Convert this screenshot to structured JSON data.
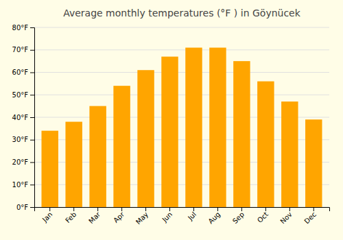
{
  "chart_data": {
    "type": "bar",
    "title": "Average monthly temperatures (°F ) in Göynücek",
    "categories": [
      "Jan",
      "Feb",
      "Mar",
      "Apr",
      "May",
      "Jun",
      "Jul",
      "Aug",
      "Sep",
      "Oct",
      "Nov",
      "Dec"
    ],
    "values": [
      34,
      38,
      45,
      54,
      61,
      67,
      71,
      71,
      65,
      56,
      47,
      39
    ],
    "color": "#FFA500",
    "ylim": [
      0,
      80
    ],
    "yticks": [
      {
        "value": 0,
        "label": "0°F"
      },
      {
        "value": 10,
        "label": "10°F"
      },
      {
        "value": 20,
        "label": "20°F"
      },
      {
        "value": 30,
        "label": "30°F"
      },
      {
        "value": 40,
        "label": "40°F"
      },
      {
        "value": 50,
        "label": "50°F"
      },
      {
        "value": 60,
        "label": "60°F"
      },
      {
        "value": 70,
        "label": "70°F"
      },
      {
        "value": 80,
        "label": "80°F"
      }
    ],
    "grid": true
  }
}
